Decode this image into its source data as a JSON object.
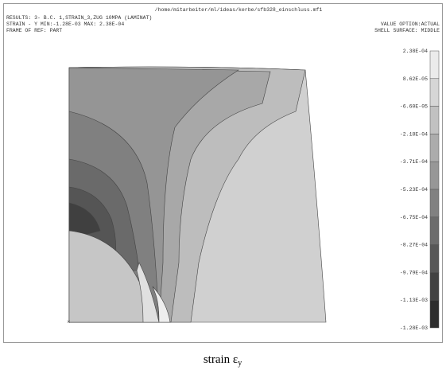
{
  "header": {
    "path": "/home/mitarbeiter/ml/ideas/kerbe/sfb328_einschluss.mf1",
    "lines": [
      "RESULTS: 3- B.C. 1,STRAIN_3,ZUG 10MPA (LAMINAT)",
      "STRAIN - Y MIN:-1.28E-03 MAX: 2.38E-04",
      "FRAME OF REF: PART"
    ],
    "value_option": "VALUE OPTION:ACTUAL",
    "shell_surface": "SHELL SURFACE: MIDDLE"
  },
  "legend": {
    "labels": [
      "2.38E-04",
      "8.62E-05",
      "-6.60E-05",
      "-2.18E-04",
      "-3.71E-04",
      "-5.23E-04",
      "-6.75E-04",
      "-8.27E-04",
      "-9.79E-04",
      "-1.13E-03",
      "-1.28E-03"
    ]
  },
  "caption": {
    "text": "strain ε",
    "sub": "y"
  }
}
